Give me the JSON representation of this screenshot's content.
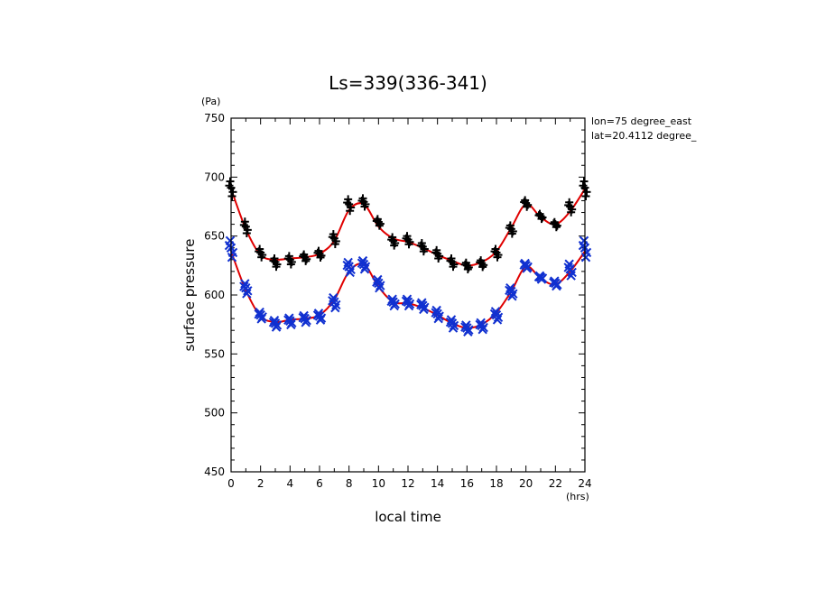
{
  "chart_data": {
    "type": "scatter",
    "title": "Ls=339(336-341)",
    "xlabel": "local time",
    "ylabel": "surface pressure",
    "x_unit": "(hrs)",
    "y_unit": "(Pa)",
    "xlim": [
      0,
      24
    ],
    "ylim": [
      450,
      750
    ],
    "x_ticks": [
      0,
      2,
      4,
      6,
      8,
      10,
      12,
      14,
      16,
      18,
      20,
      22,
      24
    ],
    "y_ticks": [
      450,
      500,
      550,
      600,
      650,
      700,
      750
    ],
    "grid": false,
    "annotations": [
      "lon=75 degree_east",
      "lat=20.4112 degree_"
    ],
    "series": [
      {
        "marker": "plus",
        "color": "#000000",
        "x": [
          0,
          1,
          2,
          3,
          4,
          5,
          6,
          7,
          8,
          9,
          10,
          11,
          12,
          13,
          14,
          15,
          16,
          17,
          18,
          19,
          20,
          21,
          22,
          23,
          24
        ],
        "y": [
          691,
          658,
          636,
          628,
          630,
          632,
          635,
          648,
          677,
          679,
          662,
          646,
          647,
          641,
          635,
          628,
          625,
          627,
          636,
          656,
          678,
          667,
          660,
          675,
          691
        ],
        "spread": [
          9,
          7,
          5,
          5,
          5,
          4,
          4,
          6,
          7,
          5,
          4,
          5,
          5,
          5,
          5,
          5,
          4,
          4,
          5,
          5,
          4,
          3,
          3,
          6,
          9
        ]
      },
      {
        "marker": "x",
        "color": "#1030d0",
        "x": [
          0,
          1,
          2,
          3,
          4,
          5,
          6,
          7,
          8,
          9,
          10,
          11,
          12,
          13,
          14,
          15,
          16,
          17,
          18,
          19,
          20,
          21,
          22,
          23,
          24
        ],
        "y": [
          640,
          606,
          583,
          576,
          578,
          580,
          582,
          594,
          624,
          626,
          610,
          594,
          594,
          591,
          584,
          576,
          572,
          574,
          583,
          603,
          625,
          615,
          610,
          622,
          640
        ],
        "spread": [
          10,
          6,
          4,
          4,
          4,
          4,
          4,
          6,
          6,
          5,
          5,
          4,
          4,
          4,
          5,
          5,
          4,
          4,
          5,
          5,
          3,
          2,
          3,
          7,
          10
        ]
      }
    ],
    "fit_lines": [
      {
        "color": "#e00000",
        "x": [
          0,
          1,
          2,
          3,
          4,
          5,
          6,
          7,
          8,
          9,
          10,
          11,
          12,
          13,
          14,
          15,
          16,
          17,
          18,
          19,
          20,
          21,
          22,
          23,
          24
        ],
        "y": [
          690,
          656,
          634,
          630,
          631,
          632,
          635,
          646,
          672,
          677,
          658,
          648,
          645,
          640,
          634,
          629,
          625,
          628,
          637,
          657,
          677,
          666,
          660,
          671,
          690
        ]
      },
      {
        "color": "#e00000",
        "x": [
          0,
          1,
          2,
          3,
          4,
          5,
          6,
          7,
          8,
          9,
          10,
          11,
          12,
          13,
          14,
          15,
          16,
          17,
          18,
          19,
          20,
          21,
          22,
          23,
          24
        ],
        "y": [
          637,
          604,
          582,
          577,
          579,
          580,
          583,
          596,
          620,
          626,
          607,
          594,
          593,
          589,
          583,
          576,
          572,
          575,
          585,
          603,
          624,
          614,
          609,
          620,
          637
        ]
      }
    ]
  }
}
